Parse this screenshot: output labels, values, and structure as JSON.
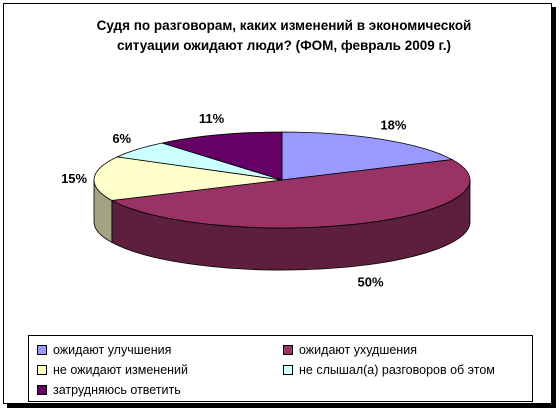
{
  "chart_data": {
    "type": "pie",
    "title": [
      "Судя по разговорам, каких изменений в экономической",
      "ситуации ожидают люди? (ФОМ, февраль 2009 г.)"
    ],
    "categories": [
      "ожидают улучшения",
      "ожидают ухудшения",
      "не ожидают изменений",
      "не слышал(а) разговоров об этом",
      "затрудняюсь ответить"
    ],
    "values": [
      18,
      50,
      15,
      6,
      11
    ],
    "labels": [
      "18%",
      "50%",
      "15%",
      "6%",
      "11%"
    ],
    "colors": [
      "#9999FF",
      "#993366",
      "#FFFFCC",
      "#CCFFFF",
      "#660066"
    ],
    "legend_position": "bottom",
    "style": "3d-pie"
  }
}
